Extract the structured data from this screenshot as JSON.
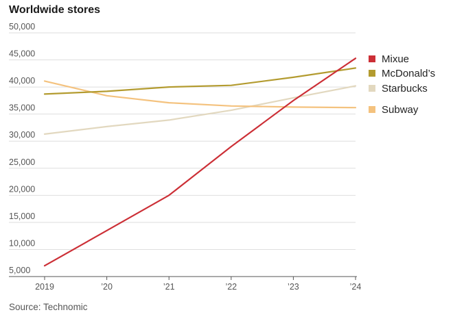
{
  "chart_data": {
    "type": "line",
    "title": "Worldwide stores",
    "source": "Source: Technomic",
    "x": [
      2019,
      2020,
      2021,
      2022,
      2023,
      2024
    ],
    "x_tick_labels": [
      "2019",
      "’20",
      "’21",
      "’22",
      "’23",
      "’24"
    ],
    "y_ticks": [
      5000,
      10000,
      15000,
      20000,
      25000,
      30000,
      35000,
      40000,
      45000,
      50000
    ],
    "y_tick_labels": [
      "5,000",
      "10,000",
      "15,000",
      "20,000",
      "25,000",
      "30,000",
      "35,000",
      "40,000",
      "45,000",
      "50,000"
    ],
    "ylim": [
      5000,
      50000
    ],
    "grid": true,
    "legend_position": "right",
    "series": [
      {
        "name": "Mixue",
        "color": "#cc2f36",
        "values": [
          7000,
          13500,
          20000,
          29000,
          37500,
          45300
        ]
      },
      {
        "name": "McDonald’s",
        "color": "#b39b2f",
        "values": [
          38700,
          39200,
          40000,
          40300,
          41800,
          43500
        ]
      },
      {
        "name": "Starbucks",
        "color": "#e2d8bf",
        "values": [
          31300,
          32700,
          33900,
          35700,
          38000,
          40200
        ]
      },
      {
        "name": "Subway",
        "color": "#f4c27e",
        "values": [
          41100,
          38400,
          37100,
          36500,
          36300,
          36200
        ]
      }
    ]
  }
}
